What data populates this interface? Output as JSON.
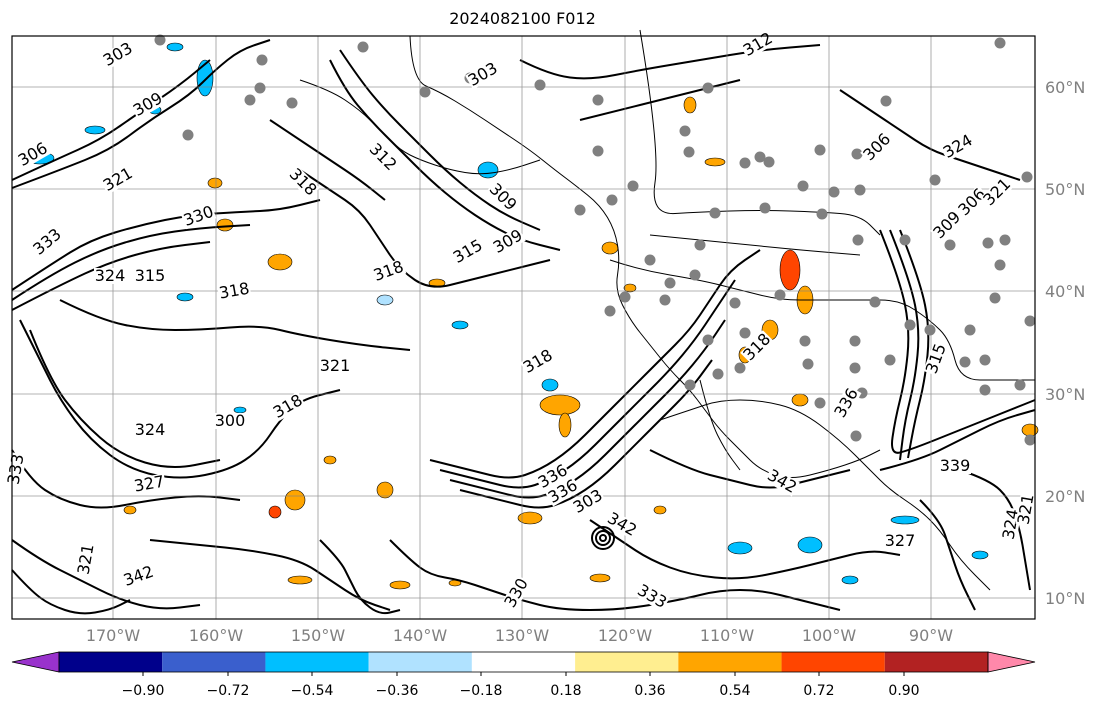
{
  "title": "2024082100 F012",
  "lat_labels": [
    "60°N",
    "50°N",
    "40°N",
    "30°N",
    "20°N",
    "10°N"
  ],
  "lon_labels": [
    "170°W",
    "160°W",
    "150°W",
    "140°W",
    "130°W",
    "120°W",
    "110°W",
    "100°W",
    "90°W"
  ],
  "colorbar": {
    "colors": [
      "#9932cc",
      "#00008b",
      "#3a5fcd",
      "#00bfff",
      "#b0e2ff",
      "#ffffff",
      "#ffee90",
      "#ffa500",
      "#ff4500",
      "#b22222",
      "#ff88aa"
    ],
    "tick_labels": [
      "−0.90",
      "−0.72",
      "−0.54",
      "−0.36",
      "−0.18",
      "0.18",
      "0.36",
      "0.54",
      "0.72",
      "0.90"
    ]
  },
  "contour_labels": [
    "303",
    "303",
    "309",
    "309",
    "306",
    "321",
    "318",
    "330",
    "333",
    "324",
    "315",
    "318",
    "321",
    "318",
    "318",
    "315",
    "312",
    "309",
    "306",
    "321",
    "324",
    "324",
    "318",
    "327",
    "333",
    "321",
    "342",
    "336",
    "336",
    "342",
    "339",
    "342",
    "336",
    "333",
    "330",
    "327",
    "324",
    "321",
    "318",
    "315",
    "312",
    "309",
    "306",
    "303",
    "300"
  ],
  "colors": {
    "coast": "#000000",
    "contour": "#000000",
    "grid": "#808080",
    "station": "#808080"
  }
}
